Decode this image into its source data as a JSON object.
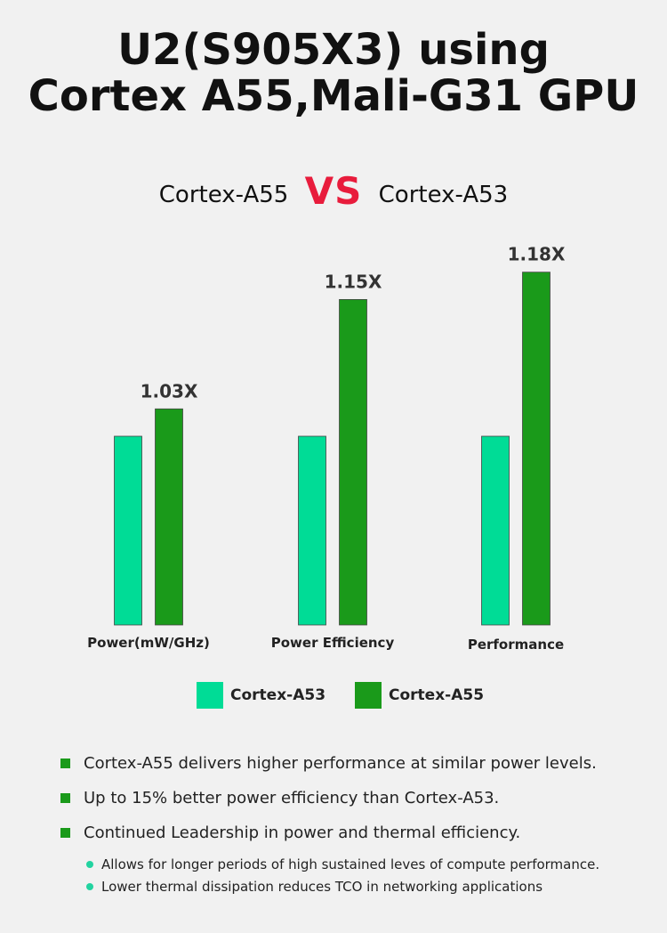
{
  "title_line1": "U2(S905X3) using",
  "title_line2": "Cortex A55,Mali-G31 GPU",
  "vs": {
    "left": "Cortex-A55",
    "middle": "VS",
    "right": "Cortex-A53"
  },
  "colors": {
    "a53": "#00dc96",
    "a55": "#1a9a1a",
    "vs": "#e81c3c"
  },
  "chart_data": {
    "type": "bar",
    "categories": [
      "Power(mW/GHz)",
      "Power Efficiency",
      "Performance"
    ],
    "series": [
      {
        "name": "Cortex-A53",
        "values": [
          1.0,
          1.0,
          1.0
        ]
      },
      {
        "name": "Cortex-A55",
        "values": [
          1.03,
          1.15,
          1.18
        ]
      }
    ],
    "data_labels": [
      "1.03X",
      "1.15X",
      "1.18X"
    ],
    "legend_position": "bottom",
    "grid": false
  },
  "legend": [
    {
      "label": "Cortex-A53",
      "color": "#00dc96"
    },
    {
      "label": "Cortex-A55",
      "color": "#1a9a1a"
    }
  ],
  "bullets": [
    "Cortex-A55 delivers higher performance at similar power levels.",
    "Up to 15% better power efficiency than Cortex-A53.",
    "Continued Leadership in power and thermal efficiency."
  ],
  "sub_bullets": [
    "Allows for longer periods of high sustained leves of compute performance.",
    "Lower thermal dissipation reduces TCO in networking applications"
  ]
}
